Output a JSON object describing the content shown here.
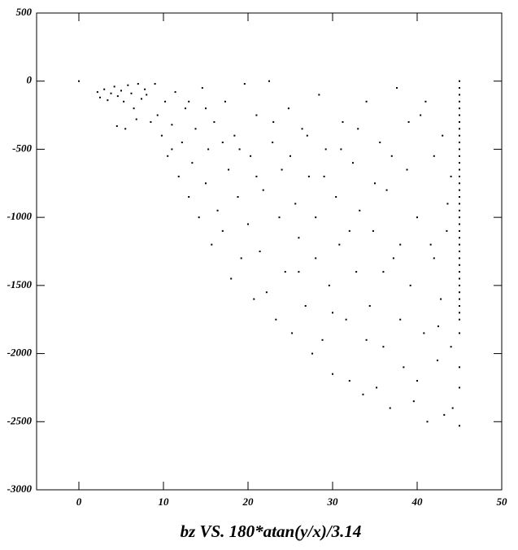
{
  "chart_data": {
    "type": "scatter",
    "title": "bz VS. 180*atan(y/x)/3.14",
    "color": "#000000",
    "xlim": [
      -5,
      50
    ],
    "xticks": [
      0,
      10,
      20,
      30,
      40,
      50
    ],
    "ylim": [
      -3000,
      500
    ],
    "yticks": [
      500,
      0,
      -500,
      -1000,
      -1500,
      -2000,
      -2500,
      -3000
    ],
    "x": [
      2.2,
      2.5,
      3,
      3.4,
      3.8,
      4.2,
      4.6,
      5,
      5.3,
      5.8,
      6.2,
      6.5,
      7,
      7.4,
      7.8,
      4.5,
      5.5,
      6.8,
      8,
      8.5,
      9,
      9.3,
      9.8,
      10.2,
      10.5,
      11,
      11.4,
      11.8,
      12.2,
      12.6,
      13,
      13.4,
      13.8,
      14.2,
      14.6,
      15,
      15.3,
      15.7,
      16,
      16.4,
      17,
      17.3,
      17.7,
      18,
      18.4,
      18.8,
      19.2,
      19.6,
      20,
      20.3,
      20.7,
      21,
      21.4,
      21.8,
      22.2,
      22.5,
      22.9,
      23.3,
      23.7,
      24,
      24.4,
      24.8,
      25.2,
      25.6,
      26,
      26.4,
      26.8,
      27.2,
      27.6,
      28,
      28.4,
      28.8,
      29.2,
      29.6,
      30,
      30.4,
      30.8,
      31.2,
      31.6,
      32,
      32.4,
      32.8,
      33.2,
      33.6,
      34,
      34.4,
      34.8,
      35.2,
      35.6,
      36,
      36.4,
      36.8,
      37.2,
      37.6,
      38,
      38.4,
      38.8,
      39.2,
      39.6,
      40,
      40.4,
      40.8,
      41.2,
      41.6,
      42,
      42.4,
      42.8,
      43.2,
      43.6,
      44,
      44.2,
      43,
      41,
      39,
      37,
      35,
      33,
      31,
      29,
      27,
      25,
      23,
      21,
      19,
      17,
      15,
      13,
      11,
      26,
      28,
      30,
      32,
      34,
      36,
      38,
      40,
      42,
      44,
      43.5,
      42.5,
      45,
      45,
      45,
      45,
      45,
      45,
      45,
      45,
      45,
      45,
      45,
      45,
      45,
      45,
      45,
      45,
      45,
      45,
      45,
      45,
      45,
      45,
      45,
      45,
      45,
      45,
      45,
      45,
      45,
      45,
      45,
      45,
      45,
      45,
      45,
      45,
      45,
      45,
      45,
      45,
      0
    ],
    "values": [
      -80,
      -120,
      -60,
      -140,
      -90,
      -40,
      -110,
      -70,
      -150,
      -30,
      -90,
      -200,
      -20,
      -130,
      -60,
      -330,
      -350,
      -280,
      -100,
      -300,
      -20,
      -250,
      -400,
      -150,
      -550,
      -320,
      -80,
      -700,
      -450,
      -200,
      -850,
      -600,
      -350,
      -1000,
      -50,
      -750,
      -500,
      -1200,
      -300,
      -950,
      -1100,
      -150,
      -650,
      -1450,
      -400,
      -850,
      -1300,
      -20,
      -1050,
      -550,
      -1600,
      -250,
      -1250,
      -800,
      -1550,
      0,
      -450,
      -1750,
      -1000,
      -650,
      -1400,
      -200,
      -1850,
      -900,
      -1150,
      -350,
      -1650,
      -700,
      -2000,
      -1300,
      -100,
      -1900,
      -500,
      -1500,
      -2150,
      -850,
      -1200,
      -300,
      -1750,
      -2200,
      -600,
      -1400,
      -950,
      -2300,
      -150,
      -1650,
      -1100,
      -2250,
      -450,
      -1950,
      -800,
      -2400,
      -1300,
      -50,
      -1750,
      -2100,
      -650,
      -1500,
      -2350,
      -1000,
      -250,
      -1850,
      -2500,
      -1200,
      -550,
      -2050,
      -1600,
      -2450,
      -900,
      -1950,
      -2400,
      -400,
      -150,
      -300,
      -550,
      -750,
      -350,
      -500,
      -700,
      -400,
      -550,
      -300,
      -700,
      -500,
      -450,
      -200,
      -150,
      -500,
      -1400,
      -1000,
      -1700,
      -1100,
      -1900,
      -1400,
      -1200,
      -2200,
      -1300,
      -700,
      -1100,
      -1800,
      0,
      -50,
      -100,
      -150,
      -200,
      -250,
      -300,
      -350,
      -400,
      -450,
      -500,
      -550,
      -600,
      -650,
      -700,
      -750,
      -800,
      -850,
      -900,
      -950,
      -1000,
      -1050,
      -1100,
      -1150,
      -1200,
      -1250,
      -1300,
      -1350,
      -1400,
      -1450,
      -1500,
      -1550,
      -1600,
      -1650,
      -1700,
      -1750,
      -1850,
      -2100,
      -2250,
      -2530,
      0
    ]
  }
}
